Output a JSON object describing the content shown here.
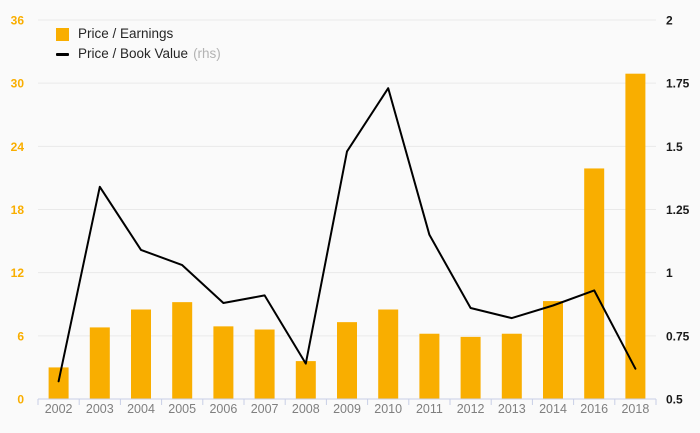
{
  "legend": {
    "items": [
      {
        "label": "Price / Earnings"
      },
      {
        "label": "Price / Book Value",
        "note": "(rhs)"
      }
    ]
  },
  "colors": {
    "bar": "#F9AE00",
    "line": "#000000",
    "left_axis_labels": "#F9AE00",
    "right_axis_labels": "#1a1a1a",
    "year_labels": "#7f7f7f",
    "gridline": "#e9e9e9",
    "axis_line": "#c8cfe6",
    "legend_text": "#262626",
    "legend_note": "#b3b3b3",
    "background": "#fafafa"
  },
  "chart_data": {
    "type": "bar",
    "subtype": "bar-and-line-dual-axis",
    "categories": [
      "2002",
      "2003",
      "2004",
      "2005",
      "2006",
      "2007",
      "2008",
      "2009",
      "2010",
      "2011",
      "2012",
      "2013",
      "2014",
      "2016",
      "2018"
    ],
    "series": [
      {
        "name": "Price / Earnings",
        "type": "bar",
        "axis": "left",
        "color": "#F9AE00",
        "values": [
          3.0,
          6.8,
          8.5,
          9.2,
          6.9,
          6.6,
          3.6,
          7.3,
          8.5,
          6.2,
          5.9,
          6.2,
          9.3,
          21.9,
          30.9
        ]
      },
      {
        "name": "Price / Book Value (rhs)",
        "type": "line",
        "axis": "right",
        "color": "#000000",
        "values": [
          0.57,
          1.34,
          1.09,
          1.03,
          0.88,
          0.91,
          0.64,
          1.48,
          1.73,
          1.15,
          0.86,
          0.82,
          0.87,
          0.93,
          0.62
        ]
      }
    ],
    "title": "",
    "xlabel": "",
    "ylabel": "",
    "left_axis": {
      "min": 0,
      "max": 36,
      "step": 6,
      "tick_labels": [
        "0",
        "6",
        "12",
        "18",
        "24",
        "30",
        "36"
      ]
    },
    "right_axis": {
      "min": 0.5,
      "max": 2,
      "step": 0.25,
      "tick_labels": [
        "0.5",
        "0.75",
        "1",
        "1.25",
        "1.5",
        "1.75",
        "2"
      ],
      "note": "rhs"
    },
    "grid": true,
    "legend_position": "top-left"
  }
}
